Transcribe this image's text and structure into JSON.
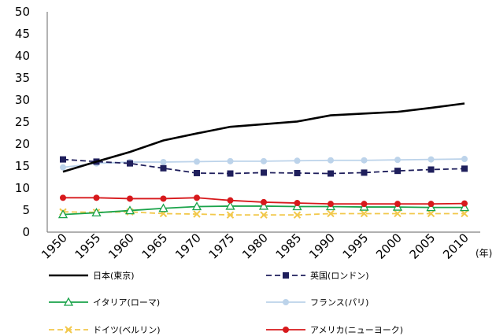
{
  "chart_data": {
    "type": "line",
    "title": "",
    "xlabel": "(年)",
    "ylabel": "",
    "ylim": [
      0,
      50
    ],
    "yticks": [
      0,
      5,
      10,
      15,
      20,
      25,
      30,
      35,
      40,
      45,
      50
    ],
    "categories": [
      "1950",
      "1955",
      "1960",
      "1965",
      "1970",
      "1975",
      "1980",
      "1985",
      "1990",
      "1995",
      "2000",
      "2005",
      "2010"
    ],
    "grid": false,
    "legend_position": "bottom",
    "series": [
      {
        "name": "日本(東京)",
        "color": "#000000",
        "dash": "solid",
        "marker": "none",
        "values": [
          13.7,
          16.0,
          18.2,
          20.8,
          22.4,
          23.9,
          24.5,
          25.1,
          26.5,
          26.9,
          27.3,
          28.2,
          29.2
        ]
      },
      {
        "name": "英国(ロンドン)",
        "color": "#1f1f5c",
        "dash": "dash",
        "marker": "square",
        "values": [
          16.5,
          16.0,
          15.6,
          14.5,
          13.4,
          13.3,
          13.5,
          13.4,
          13.3,
          13.5,
          13.9,
          14.2,
          14.4
        ]
      },
      {
        "name": "イタリア(ローマ)",
        "color": "#1aa34a",
        "dash": "solid",
        "marker": "triangle",
        "values": [
          4.0,
          4.4,
          4.9,
          5.4,
          5.8,
          5.9,
          5.9,
          5.8,
          5.8,
          5.7,
          5.7,
          5.6,
          5.6
        ]
      },
      {
        "name": "フランス(パリ)",
        "color": "#bcd3ea",
        "dash": "solid",
        "marker": "circle",
        "values": [
          14.7,
          15.6,
          15.9,
          15.9,
          16.0,
          16.1,
          16.1,
          16.2,
          16.3,
          16.3,
          16.4,
          16.5,
          16.6
        ]
      },
      {
        "name": "ドイツ(ベルリン)",
        "color": "#f2c84b",
        "dash": "dash",
        "marker": "cross",
        "values": [
          4.6,
          4.5,
          4.6,
          4.2,
          4.1,
          3.9,
          3.9,
          3.9,
          4.2,
          4.2,
          4.2,
          4.2,
          4.2
        ]
      },
      {
        "name": "アメリカ(ニューヨーク)",
        "color": "#d7191c",
        "dash": "solid",
        "marker": "circle",
        "values": [
          7.8,
          7.8,
          7.6,
          7.6,
          7.8,
          7.2,
          6.8,
          6.6,
          6.4,
          6.4,
          6.4,
          6.4,
          6.5
        ]
      }
    ]
  }
}
